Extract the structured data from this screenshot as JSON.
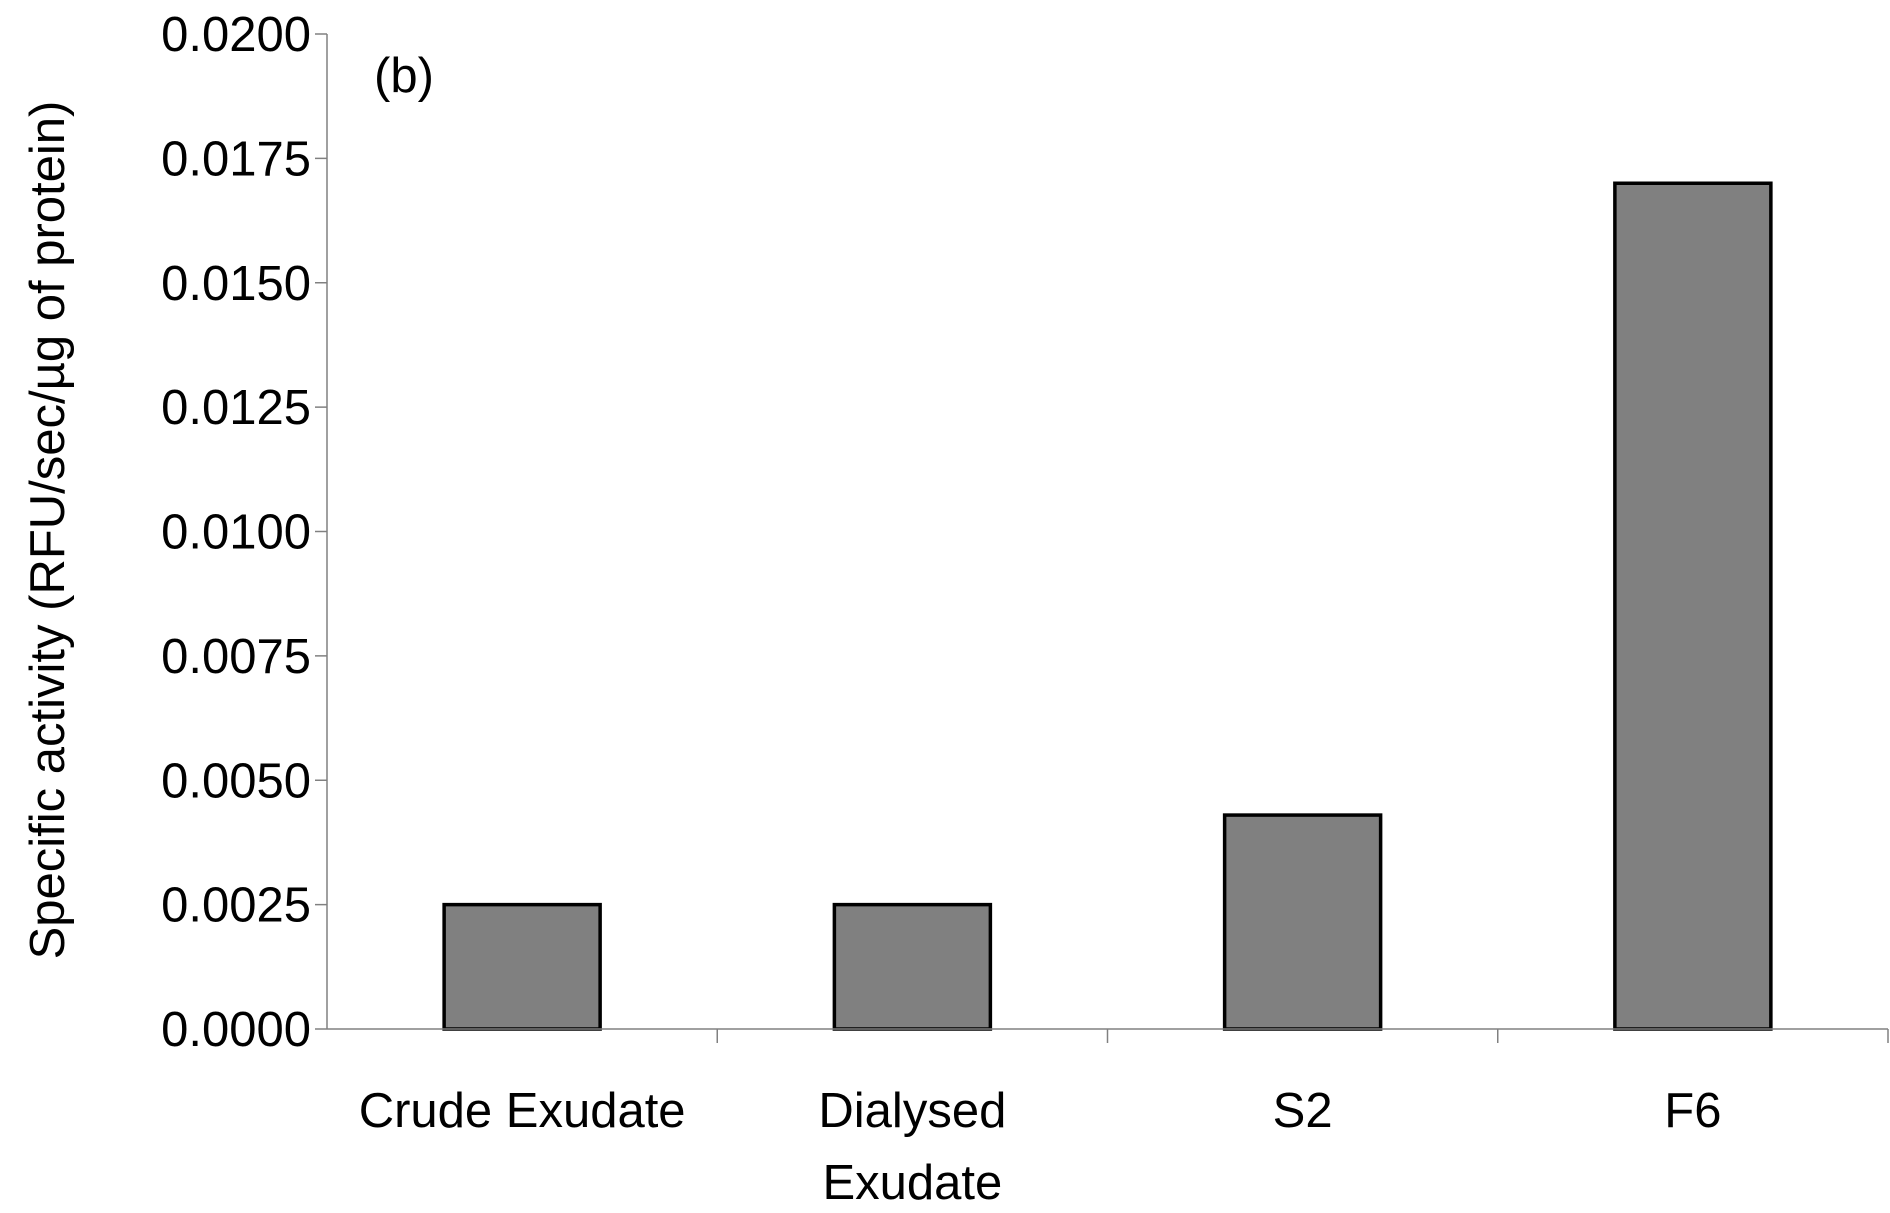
{
  "chart_data": {
    "type": "bar",
    "panel_label": "(b)",
    "title": "",
    "xlabel": "",
    "ylabel": "Specific activity (RFU/sec/µg of protein)",
    "categories": [
      [
        "Crude Exudate"
      ],
      [
        "Dialysed",
        "Exudate"
      ],
      [
        "S2"
      ],
      [
        "F6"
      ]
    ],
    "values": [
      0.0025,
      0.0025,
      0.0043,
      0.017
    ],
    "ylim": [
      0,
      0.02
    ],
    "yticks": [
      "0.0000",
      "0.0025",
      "0.0050",
      "0.0075",
      "0.0100",
      "0.0125",
      "0.0150",
      "0.0175",
      "0.0200"
    ],
    "grid": false,
    "legend": "none",
    "bar_color": "#808080",
    "bar_edge_color": "#000000"
  }
}
